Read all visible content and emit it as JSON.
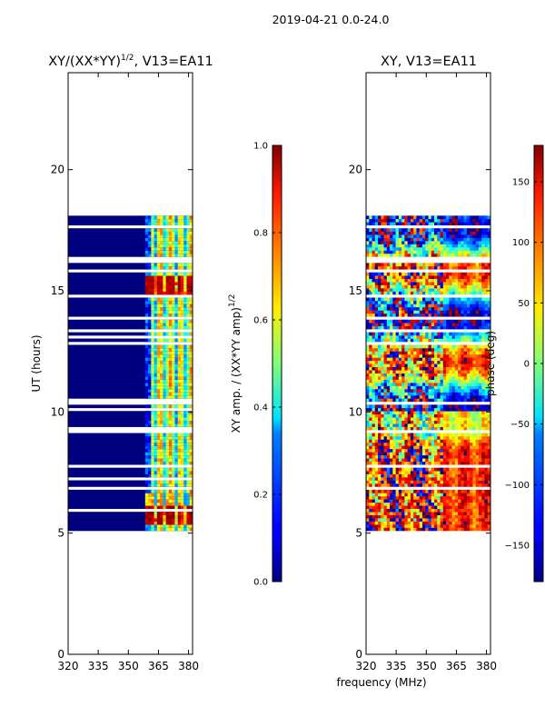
{
  "figure": {
    "suptitle": "2019-04-21 0.0-24.0",
    "xlabel_shared": "frequency (MHz)"
  },
  "colorbar_left": {
    "label": "XY amp. / (XX*YY amp)",
    "label_exponent": "1/2",
    "ticks": [
      "0.0",
      "0.2",
      "0.4",
      "0.6",
      "0.8",
      "1.0"
    ],
    "range": [
      0.0,
      1.0
    ]
  },
  "colorbar_right": {
    "label": "phase (deg)",
    "ticks": [
      "−150",
      "−100",
      "−50",
      "0",
      "50",
      "100",
      "150"
    ],
    "range": [
      -180,
      180
    ]
  },
  "chart_data": [
    {
      "type": "heatmap",
      "title_base": "XY/(XX*YY)",
      "title_exponent": "1/2",
      "title_suffix": ", V13=EA11",
      "xlabel": "",
      "ylabel": "UT (hours)",
      "xlim": [
        320,
        382
      ],
      "ylim": [
        0,
        24
      ],
      "xticks": [
        320,
        335,
        350,
        365,
        380
      ],
      "yticks": [
        0,
        5,
        10,
        15,
        20
      ],
      "data_extent_hours": [
        5.1,
        18.1
      ],
      "quantity": "normalized amplitude",
      "value_range": [
        0.0,
        1.0
      ]
    },
    {
      "type": "heatmap",
      "title": "XY, V13=EA11",
      "xlabel": "frequency (MHz)",
      "ylabel": "",
      "xlim": [
        320,
        382
      ],
      "ylim": [
        0,
        24
      ],
      "xticks": [
        320,
        335,
        350,
        365,
        380
      ],
      "yticks": [
        0,
        5,
        10,
        15,
        20
      ],
      "data_extent_hours": [
        5.1,
        18.1
      ],
      "quantity": "phase (deg)",
      "value_range": [
        -180,
        180
      ]
    }
  ]
}
